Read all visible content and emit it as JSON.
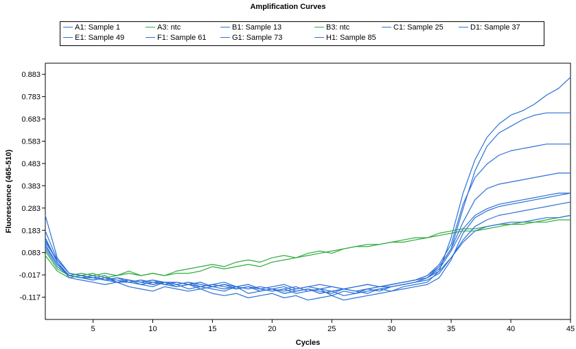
{
  "chart_data": {
    "type": "line",
    "title": "Amplification Curves",
    "xlabel": "Cycles",
    "ylabel": "Fluorescence (465-510)",
    "xlim": [
      1,
      45
    ],
    "ylim": [
      -0.217,
      0.933
    ],
    "x_ticks": [
      5,
      10,
      15,
      20,
      25,
      30,
      35,
      40,
      45
    ],
    "y_ticks": [
      -0.117,
      -0.017,
      0.083,
      0.183,
      0.283,
      0.383,
      0.483,
      0.583,
      0.683,
      0.783,
      0.883
    ],
    "y_tick_labels": [
      "-0.117",
      "-0.017",
      "0.083",
      "0.183",
      "0.283",
      "0.383",
      "0.483",
      "0.583",
      "0.683",
      "0.783",
      "0.883"
    ],
    "x": [
      1,
      2,
      3,
      4,
      5,
      6,
      7,
      8,
      9,
      10,
      11,
      12,
      13,
      14,
      15,
      16,
      17,
      18,
      19,
      20,
      21,
      22,
      23,
      24,
      25,
      26,
      27,
      28,
      29,
      30,
      31,
      32,
      33,
      34,
      35,
      36,
      37,
      38,
      39,
      40,
      41,
      42,
      43,
      44,
      45
    ],
    "grid": false,
    "legend_position": "top",
    "series": [
      {
        "name": "A1: Sample 1",
        "color": "#2a6fd6",
        "values": [
          0.25,
          0.06,
          -0.01,
          -0.02,
          -0.03,
          -0.02,
          -0.05,
          -0.05,
          -0.06,
          -0.07,
          -0.05,
          -0.06,
          -0.08,
          -0.07,
          -0.08,
          -0.09,
          -0.07,
          -0.1,
          -0.09,
          -0.08,
          -0.1,
          -0.09,
          -0.08,
          -0.09,
          -0.1,
          -0.08,
          -0.09,
          -0.1,
          -0.08,
          -0.09,
          -0.07,
          -0.06,
          -0.05,
          0.0,
          0.15,
          0.35,
          0.5,
          0.6,
          0.66,
          0.7,
          0.72,
          0.75,
          0.79,
          0.82,
          0.87
        ]
      },
      {
        "name": "A3: ntc",
        "color": "#2eaa3c",
        "values": [
          0.09,
          0.01,
          -0.02,
          -0.01,
          -0.02,
          -0.01,
          -0.02,
          -0.01,
          -0.02,
          -0.01,
          -0.02,
          -0.01,
          -0.01,
          0.0,
          0.02,
          0.01,
          0.02,
          0.03,
          0.02,
          0.04,
          0.05,
          0.06,
          0.07,
          0.08,
          0.09,
          0.1,
          0.11,
          0.11,
          0.12,
          0.13,
          0.13,
          0.14,
          0.15,
          0.16,
          0.17,
          0.18,
          0.18,
          0.19,
          0.2,
          0.21,
          0.21,
          0.22,
          0.22,
          0.23,
          0.23
        ]
      },
      {
        "name": "B1: Sample 13",
        "color": "#2a6fd6",
        "values": [
          0.15,
          0.04,
          -0.02,
          -0.03,
          -0.03,
          -0.04,
          -0.05,
          -0.04,
          -0.05,
          -0.06,
          -0.05,
          -0.05,
          -0.06,
          -0.07,
          -0.06,
          -0.07,
          -0.08,
          -0.07,
          -0.08,
          -0.09,
          -0.08,
          -0.07,
          -0.09,
          -0.08,
          -0.07,
          -0.08,
          -0.09,
          -0.08,
          -0.07,
          -0.07,
          -0.06,
          -0.05,
          -0.03,
          0.02,
          0.1,
          0.28,
          0.45,
          0.56,
          0.62,
          0.65,
          0.68,
          0.7,
          0.71,
          0.71,
          0.71
        ]
      },
      {
        "name": "B3: ntc",
        "color": "#2eaa3c",
        "values": [
          0.07,
          0.0,
          -0.03,
          -0.02,
          -0.01,
          -0.03,
          -0.02,
          0.0,
          -0.02,
          -0.01,
          -0.02,
          0.0,
          0.01,
          0.02,
          0.03,
          0.02,
          0.04,
          0.05,
          0.04,
          0.06,
          0.07,
          0.06,
          0.08,
          0.09,
          0.08,
          0.1,
          0.11,
          0.12,
          0.12,
          0.13,
          0.14,
          0.15,
          0.15,
          0.17,
          0.18,
          0.19,
          0.19,
          0.2,
          0.21,
          0.21,
          0.22,
          0.22,
          0.23,
          0.24,
          0.25
        ]
      },
      {
        "name": "C1: Sample 25",
        "color": "#2a6fd6",
        "values": [
          0.18,
          0.05,
          -0.01,
          -0.02,
          -0.03,
          -0.04,
          -0.03,
          -0.04,
          -0.05,
          -0.04,
          -0.06,
          -0.05,
          -0.06,
          -0.05,
          -0.07,
          -0.06,
          -0.08,
          -0.07,
          -0.09,
          -0.08,
          -0.07,
          -0.09,
          -0.08,
          -0.1,
          -0.09,
          -0.08,
          -0.09,
          -0.08,
          -0.07,
          -0.06,
          -0.05,
          -0.04,
          -0.02,
          0.03,
          0.12,
          0.3,
          0.42,
          0.48,
          0.52,
          0.54,
          0.55,
          0.56,
          0.57,
          0.57,
          0.57
        ]
      },
      {
        "name": "D1: Sample 37",
        "color": "#2a6fd6",
        "values": [
          0.12,
          0.03,
          -0.02,
          -0.03,
          -0.04,
          -0.03,
          -0.04,
          -0.05,
          -0.04,
          -0.05,
          -0.05,
          -0.06,
          -0.05,
          -0.06,
          -0.07,
          -0.06,
          -0.07,
          -0.08,
          -0.07,
          -0.08,
          -0.09,
          -0.08,
          -0.07,
          -0.08,
          -0.09,
          -0.08,
          -0.07,
          -0.06,
          -0.07,
          -0.06,
          -0.05,
          -0.04,
          -0.02,
          0.02,
          0.1,
          0.22,
          0.32,
          0.37,
          0.39,
          0.4,
          0.41,
          0.42,
          0.43,
          0.44,
          0.44
        ]
      },
      {
        "name": "E1: Sample 49",
        "color": "#2a6fd6",
        "values": [
          0.14,
          0.04,
          -0.03,
          -0.04,
          -0.05,
          -0.06,
          -0.05,
          -0.07,
          -0.08,
          -0.09,
          -0.07,
          -0.08,
          -0.09,
          -0.08,
          -0.1,
          -0.11,
          -0.1,
          -0.12,
          -0.11,
          -0.1,
          -0.12,
          -0.11,
          -0.13,
          -0.12,
          -0.11,
          -0.13,
          -0.12,
          -0.11,
          -0.1,
          -0.09,
          -0.08,
          -0.07,
          -0.06,
          -0.03,
          0.05,
          0.17,
          0.24,
          0.27,
          0.29,
          0.3,
          0.31,
          0.32,
          0.33,
          0.34,
          0.35
        ]
      },
      {
        "name": "F1: Sample 61",
        "color": "#2a6fd6",
        "values": [
          0.11,
          0.03,
          -0.02,
          -0.03,
          -0.02,
          -0.04,
          -0.03,
          -0.04,
          -0.05,
          -0.04,
          -0.05,
          -0.06,
          -0.05,
          -0.07,
          -0.06,
          -0.05,
          -0.07,
          -0.06,
          -0.08,
          -0.07,
          -0.06,
          -0.08,
          -0.07,
          -0.06,
          -0.07,
          -0.08,
          -0.07,
          -0.06,
          -0.07,
          -0.06,
          -0.05,
          -0.04,
          -0.03,
          0.01,
          0.09,
          0.19,
          0.25,
          0.28,
          0.3,
          0.31,
          0.32,
          0.33,
          0.34,
          0.35,
          0.35
        ]
      },
      {
        "name": "G1: Sample 73",
        "color": "#2a6fd6",
        "values": [
          0.13,
          0.05,
          -0.01,
          -0.02,
          -0.03,
          -0.04,
          -0.03,
          -0.05,
          -0.04,
          -0.06,
          -0.05,
          -0.07,
          -0.06,
          -0.05,
          -0.07,
          -0.08,
          -0.07,
          -0.06,
          -0.08,
          -0.09,
          -0.08,
          -0.1,
          -0.09,
          -0.08,
          -0.11,
          -0.09,
          -0.1,
          -0.08,
          -0.09,
          -0.07,
          -0.06,
          -0.05,
          -0.04,
          -0.01,
          0.06,
          0.14,
          0.2,
          0.23,
          0.25,
          0.26,
          0.27,
          0.28,
          0.29,
          0.3,
          0.31
        ]
      },
      {
        "name": "H1: Sample 85",
        "color": "#2a6fd6",
        "values": [
          0.1,
          0.02,
          -0.02,
          -0.03,
          -0.04,
          -0.03,
          -0.05,
          -0.04,
          -0.06,
          -0.05,
          -0.06,
          -0.07,
          -0.06,
          -0.08,
          -0.07,
          -0.06,
          -0.08,
          -0.07,
          -0.09,
          -0.08,
          -0.1,
          -0.09,
          -0.08,
          -0.1,
          -0.09,
          -0.11,
          -0.1,
          -0.09,
          -0.08,
          -0.07,
          -0.06,
          -0.05,
          -0.03,
          0.0,
          0.06,
          0.13,
          0.18,
          0.2,
          0.21,
          0.22,
          0.22,
          0.23,
          0.24,
          0.24,
          0.25
        ]
      }
    ]
  }
}
